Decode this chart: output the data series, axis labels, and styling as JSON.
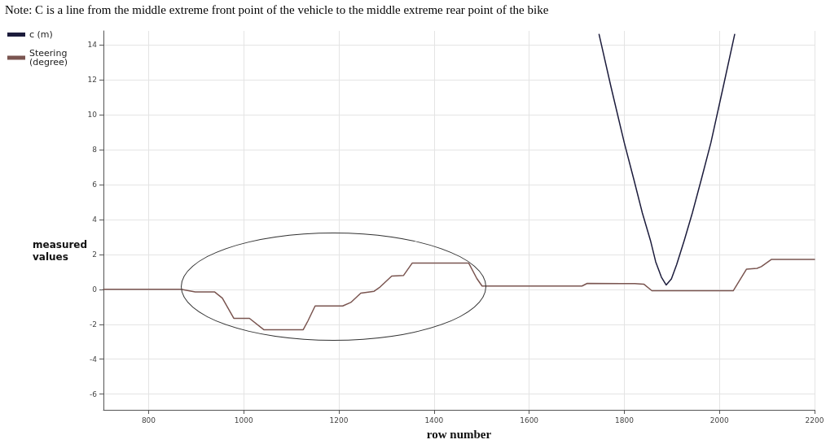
{
  "chart_data": {
    "type": "line",
    "annotations": [
      "Note: C is a line from the middle extreme front point of the vehicle to the middle extreme rear point of the bike"
    ],
    "xlabel": "row number",
    "ylabel": "measured values",
    "series": [
      {
        "name": "c (m)",
        "color": "#1c1c3c",
        "x": [
          1747,
          1772,
          1800,
          1820,
          1838,
          1855,
          1866,
          1878,
          1888,
          1899,
          1910,
          1926,
          1943,
          1962,
          1982,
          2008,
          2032
        ],
        "values": [
          14.6,
          11.6,
          8.39,
          6.3,
          4.37,
          2.8,
          1.58,
          0.7,
          0.25,
          0.6,
          1.41,
          2.8,
          4.37,
          6.3,
          8.39,
          11.6,
          14.6
        ]
      },
      {
        "name": "Steering (degree)",
        "color": "#7a5550",
        "x": [
          705,
          868,
          898,
          939,
          955,
          979,
          1012,
          1042,
          1125,
          1135,
          1150,
          1208,
          1225,
          1246,
          1274,
          1285,
          1311,
          1336,
          1354,
          1473,
          1490,
          1501,
          1711,
          1722,
          1822,
          1841,
          1858,
          2029,
          2057,
          2079,
          2088,
          2109,
          2200
        ],
        "values": [
          0,
          0,
          -0.15,
          -0.15,
          -0.5,
          -1.66,
          -1.66,
          -2.31,
          -2.31,
          -1.8,
          -0.95,
          -0.95,
          -0.75,
          -0.22,
          -0.11,
          0.1,
          0.76,
          0.8,
          1.5,
          1.5,
          0.62,
          0.19,
          0.19,
          0.34,
          0.33,
          0.3,
          -0.08,
          -0.08,
          1.16,
          1.2,
          1.3,
          1.71,
          1.71
        ]
      }
    ],
    "xlim": [
      705,
      2200
    ],
    "xticks": [
      800,
      1000,
      1200,
      1400,
      1600,
      1800,
      2000,
      2200
    ],
    "ylim": [
      -6.9,
      14.8
    ],
    "yticks": [
      -6,
      -4,
      -2,
      0,
      2,
      4,
      6,
      8,
      10,
      12,
      14
    ],
    "grid": true,
    "legend": "top left",
    "marker": "none",
    "line_style": "solid"
  }
}
